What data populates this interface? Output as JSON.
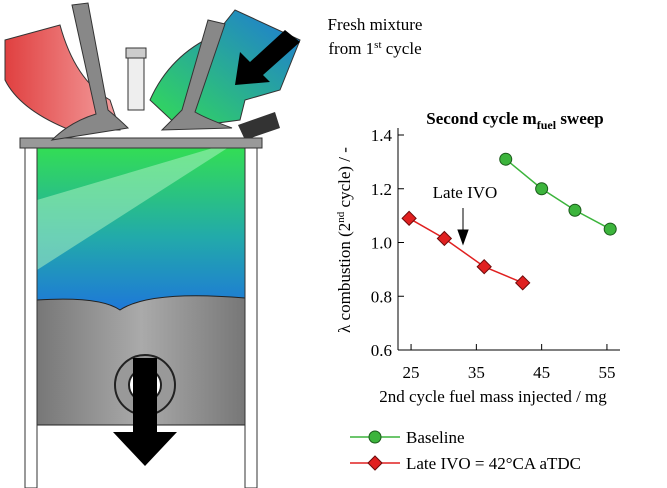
{
  "diagram": {
    "label": [
      "Fresh mixture",
      "from 1",
      "st",
      " cycle"
    ]
  },
  "chart_data": {
    "type": "line",
    "title": [
      "Second cycle m",
      "fuel",
      " sweep"
    ],
    "xlabel": "2nd cycle fuel mass injected / mg",
    "ylabel": [
      "λ combustion (2",
      "nd",
      " cycle) / -"
    ],
    "annotation": "Late IVO",
    "xlim": [
      23,
      57
    ],
    "xticks": [
      25,
      35,
      45,
      55
    ],
    "ylim": [
      0.6,
      1.4
    ],
    "yticks": [
      {
        "value": 0.6,
        "label": "0.6"
      },
      {
        "value": 0.8,
        "label": "0.8"
      },
      {
        "value": 1.0,
        "label": "1.0"
      },
      {
        "value": 1.2,
        "label": "1.2"
      },
      {
        "value": 1.4,
        "label": "1.4"
      }
    ],
    "series": [
      {
        "name": "Baseline",
        "color": "#3cb43c",
        "marker": "circle",
        "x": [
          39.5,
          45.0,
          50.1,
          55.5
        ],
        "values": [
          1.31,
          1.2,
          1.12,
          1.05
        ]
      },
      {
        "name": "Late IVO = 42°CA aTDC",
        "color": "#e02020",
        "marker": "diamond",
        "x": [
          24.7,
          30.1,
          36.2,
          42.1
        ],
        "values": [
          1.09,
          1.015,
          0.91,
          0.85
        ]
      }
    ]
  }
}
